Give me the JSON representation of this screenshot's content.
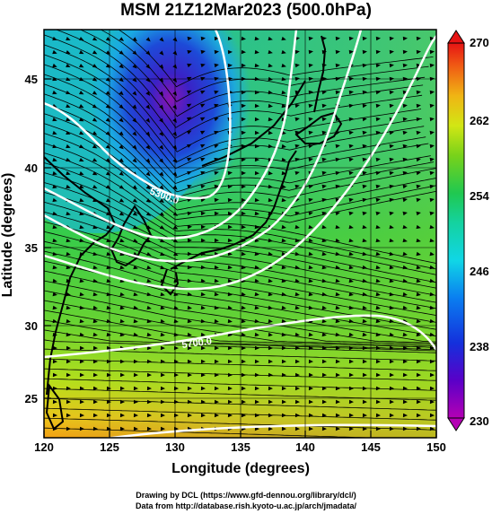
{
  "title": "MSM 21Z12Mar2023 (500.0hPa)",
  "xlabel": "Longitude (degrees)",
  "ylabel": "Latitude  (degrees)",
  "lon_range": [
    120,
    150
  ],
  "lat_range": [
    22.8,
    48
  ],
  "x_ticks": [
    "120",
    "125",
    "130",
    "135",
    "140",
    "145",
    "150"
  ],
  "y_ticks": [
    "25",
    "30",
    "35",
    "40",
    "45"
  ],
  "colorbar": {
    "ticks": [
      "230",
      "238",
      "246",
      "254",
      "262",
      "270"
    ],
    "min": 230,
    "max": 270
  },
  "contour_labels": [
    "5300.0",
    "5700.0"
  ],
  "footer": {
    "line1": "Drawing by DCL (https://www.gfd-dennou.org/library/dcl/)",
    "line2": "Data from http://database.rish.kyoto-u.ac.jp/arch/jmadata/"
  },
  "colors": {
    "background": "#ffffff",
    "contour": "#ffffff",
    "streamline": "#000000",
    "coast": "#000000"
  }
}
